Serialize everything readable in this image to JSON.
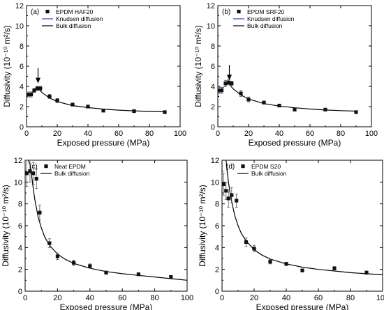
{
  "chart_data": [
    {
      "type": "scatter",
      "panel_label": "(a)",
      "xlabel": "Exposed pressure (MPa)",
      "ylabel": "Diffusivity (10⁻¹⁰ m²/s)",
      "xlim": [
        0,
        100
      ],
      "ylim": [
        0,
        12
      ],
      "xticks": [
        "0",
        "20",
        "40",
        "60",
        "80",
        "100"
      ],
      "yticks": [
        "0",
        "2",
        "4",
        "6",
        "8",
        "10",
        "12"
      ],
      "legend_position": "top-left",
      "arrow_at": [
        7.5,
        4.3
      ],
      "series": [
        {
          "name": "EPDM HAF20",
          "kind": "points",
          "x": [
            1.5,
            3,
            5,
            7,
            9,
            15,
            20,
            30,
            40,
            50,
            70,
            90
          ],
          "y": [
            3.2,
            3.2,
            3.6,
            3.8,
            3.8,
            3.0,
            2.6,
            2.2,
            2.0,
            1.6,
            1.55,
            1.45
          ],
          "err": [
            0.25,
            0.25,
            0.2,
            0.2,
            0.2,
            0.2,
            0.2,
            0.15,
            0.1,
            0.1,
            0.1,
            0.1
          ]
        },
        {
          "name": "Knudsen diffusion",
          "kind": "line",
          "color": "#1a3fd6",
          "x": [
            0.5,
            2,
            4,
            6,
            8,
            9
          ],
          "y": [
            3.0,
            3.2,
            3.45,
            3.65,
            3.85,
            3.9
          ]
        },
        {
          "name": "Bulk diffusion",
          "kind": "line",
          "color": "#000000",
          "x": [
            7,
            10,
            15,
            20,
            30,
            40,
            50,
            60,
            70,
            80,
            90
          ],
          "y": [
            3.9,
            3.4,
            2.85,
            2.5,
            2.1,
            1.9,
            1.75,
            1.65,
            1.58,
            1.52,
            1.48
          ]
        }
      ]
    },
    {
      "type": "scatter",
      "panel_label": "(b)",
      "xlabel": "Exposed pressure (MPa)",
      "ylabel": "Diffusivity (10⁻¹⁰ m²/s)",
      "xlim": [
        0,
        100
      ],
      "ylim": [
        0,
        12
      ],
      "xticks": [
        "0",
        "20",
        "40",
        "60",
        "80",
        "100"
      ],
      "yticks": [
        "0",
        "2",
        "4",
        "6",
        "8",
        "10",
        "12"
      ],
      "legend_position": "top-left",
      "arrow_at": [
        7.5,
        4.6
      ],
      "series": [
        {
          "name": "EPDM SRF20",
          "kind": "points",
          "x": [
            1,
            2.5,
            5,
            7,
            9,
            15,
            20,
            30,
            40,
            50,
            70,
            90
          ],
          "y": [
            3.6,
            3.6,
            4.3,
            4.4,
            4.3,
            3.3,
            2.7,
            2.4,
            2.1,
            1.7,
            1.7,
            1.45
          ],
          "err": [
            0.3,
            0.3,
            0.3,
            0.25,
            0.2,
            0.3,
            0.25,
            0.15,
            0.1,
            0.1,
            0.1,
            0.1
          ]
        },
        {
          "name": "Knudsen diffusion",
          "kind": "line",
          "color": "#1a3fd6",
          "x": [
            0.5,
            2,
            4,
            6,
            8,
            9
          ],
          "y": [
            3.4,
            3.65,
            3.95,
            4.2,
            4.4,
            4.45
          ]
        },
        {
          "name": "Bulk diffusion",
          "kind": "line",
          "color": "#000000",
          "x": [
            7,
            10,
            15,
            20,
            30,
            40,
            50,
            60,
            70,
            80,
            90
          ],
          "y": [
            4.3,
            3.75,
            3.15,
            2.75,
            2.3,
            2.05,
            1.88,
            1.76,
            1.66,
            1.6,
            1.55
          ]
        }
      ]
    },
    {
      "type": "scatter",
      "panel_label": "(c)",
      "xlabel": "Exposed pressure (MPa)",
      "ylabel": "Diffusivity (10⁻¹⁰ m²/s)",
      "xlim": [
        0,
        100
      ],
      "ylim": [
        0,
        12
      ],
      "xticks": [
        "0",
        "20",
        "40",
        "60",
        "80",
        "100"
      ],
      "yticks": [
        "0",
        "2",
        "4",
        "6",
        "8",
        "10",
        "12"
      ],
      "legend_position": "top-left",
      "series": [
        {
          "name": "Neat EPDM",
          "kind": "points",
          "x": [
            1,
            3,
            5,
            7,
            9,
            15,
            20,
            30,
            40,
            50,
            70,
            90
          ],
          "y": [
            10.8,
            11.0,
            10.8,
            10.3,
            7.2,
            4.4,
            3.2,
            2.6,
            2.3,
            1.7,
            1.55,
            1.3
          ],
          "err": [
            1.2,
            1.0,
            1.0,
            0.9,
            0.7,
            0.4,
            0.3,
            0.25,
            0.2,
            0.15,
            0.1,
            0.1
          ]
        },
        {
          "name": "Bulk diffusion",
          "kind": "line",
          "color": "#000000",
          "x": [
            2,
            3,
            4,
            5,
            6,
            8,
            10,
            12,
            15,
            20,
            25,
            30,
            40,
            50,
            60,
            70,
            80,
            90,
            100
          ],
          "y": [
            12,
            11.6,
            10.6,
            9.4,
            8.4,
            6.8,
            5.8,
            5.0,
            4.2,
            3.4,
            2.9,
            2.55,
            2.1,
            1.8,
            1.6,
            1.45,
            1.3,
            1.15,
            1.0
          ]
        }
      ]
    },
    {
      "type": "scatter",
      "panel_label": "(d)",
      "xlabel": "Exposed pressure (MPa)",
      "ylabel": "Diffusivity (10⁻¹⁰ m²/s)",
      "xlim": [
        0,
        100
      ],
      "ylim": [
        0,
        12
      ],
      "xticks": [
        "0",
        "20",
        "40",
        "60",
        "80",
        "100"
      ],
      "yticks": [
        "0",
        "2",
        "4",
        "6",
        "8",
        "10",
        "12"
      ],
      "legend_position": "top-left",
      "series": [
        {
          "name": "EPDM S20",
          "kind": "points",
          "x": [
            1,
            2.5,
            4,
            6,
            9,
            15,
            20,
            30,
            40,
            50,
            70,
            90
          ],
          "y": [
            9.8,
            9.2,
            8.5,
            8.8,
            8.3,
            4.5,
            3.9,
            2.7,
            2.5,
            1.9,
            2.1,
            1.7
          ],
          "err": [
            1.0,
            0.8,
            0.8,
            0.7,
            0.6,
            0.4,
            0.3,
            0.2,
            0.15,
            0.15,
            0.15,
            0.15
          ]
        },
        {
          "name": "Bulk diffusion",
          "kind": "line",
          "color": "#000000",
          "x": [
            2.5,
            3,
            4,
            5,
            6,
            8,
            10,
            12,
            15,
            20,
            25,
            30,
            40,
            50,
            60,
            70,
            80,
            90,
            100
          ],
          "y": [
            12,
            11.2,
            10.0,
            9.0,
            8.2,
            6.9,
            6.0,
            5.3,
            4.6,
            3.8,
            3.3,
            2.95,
            2.5,
            2.2,
            2.0,
            1.85,
            1.7,
            1.6,
            1.5
          ]
        }
      ]
    }
  ]
}
